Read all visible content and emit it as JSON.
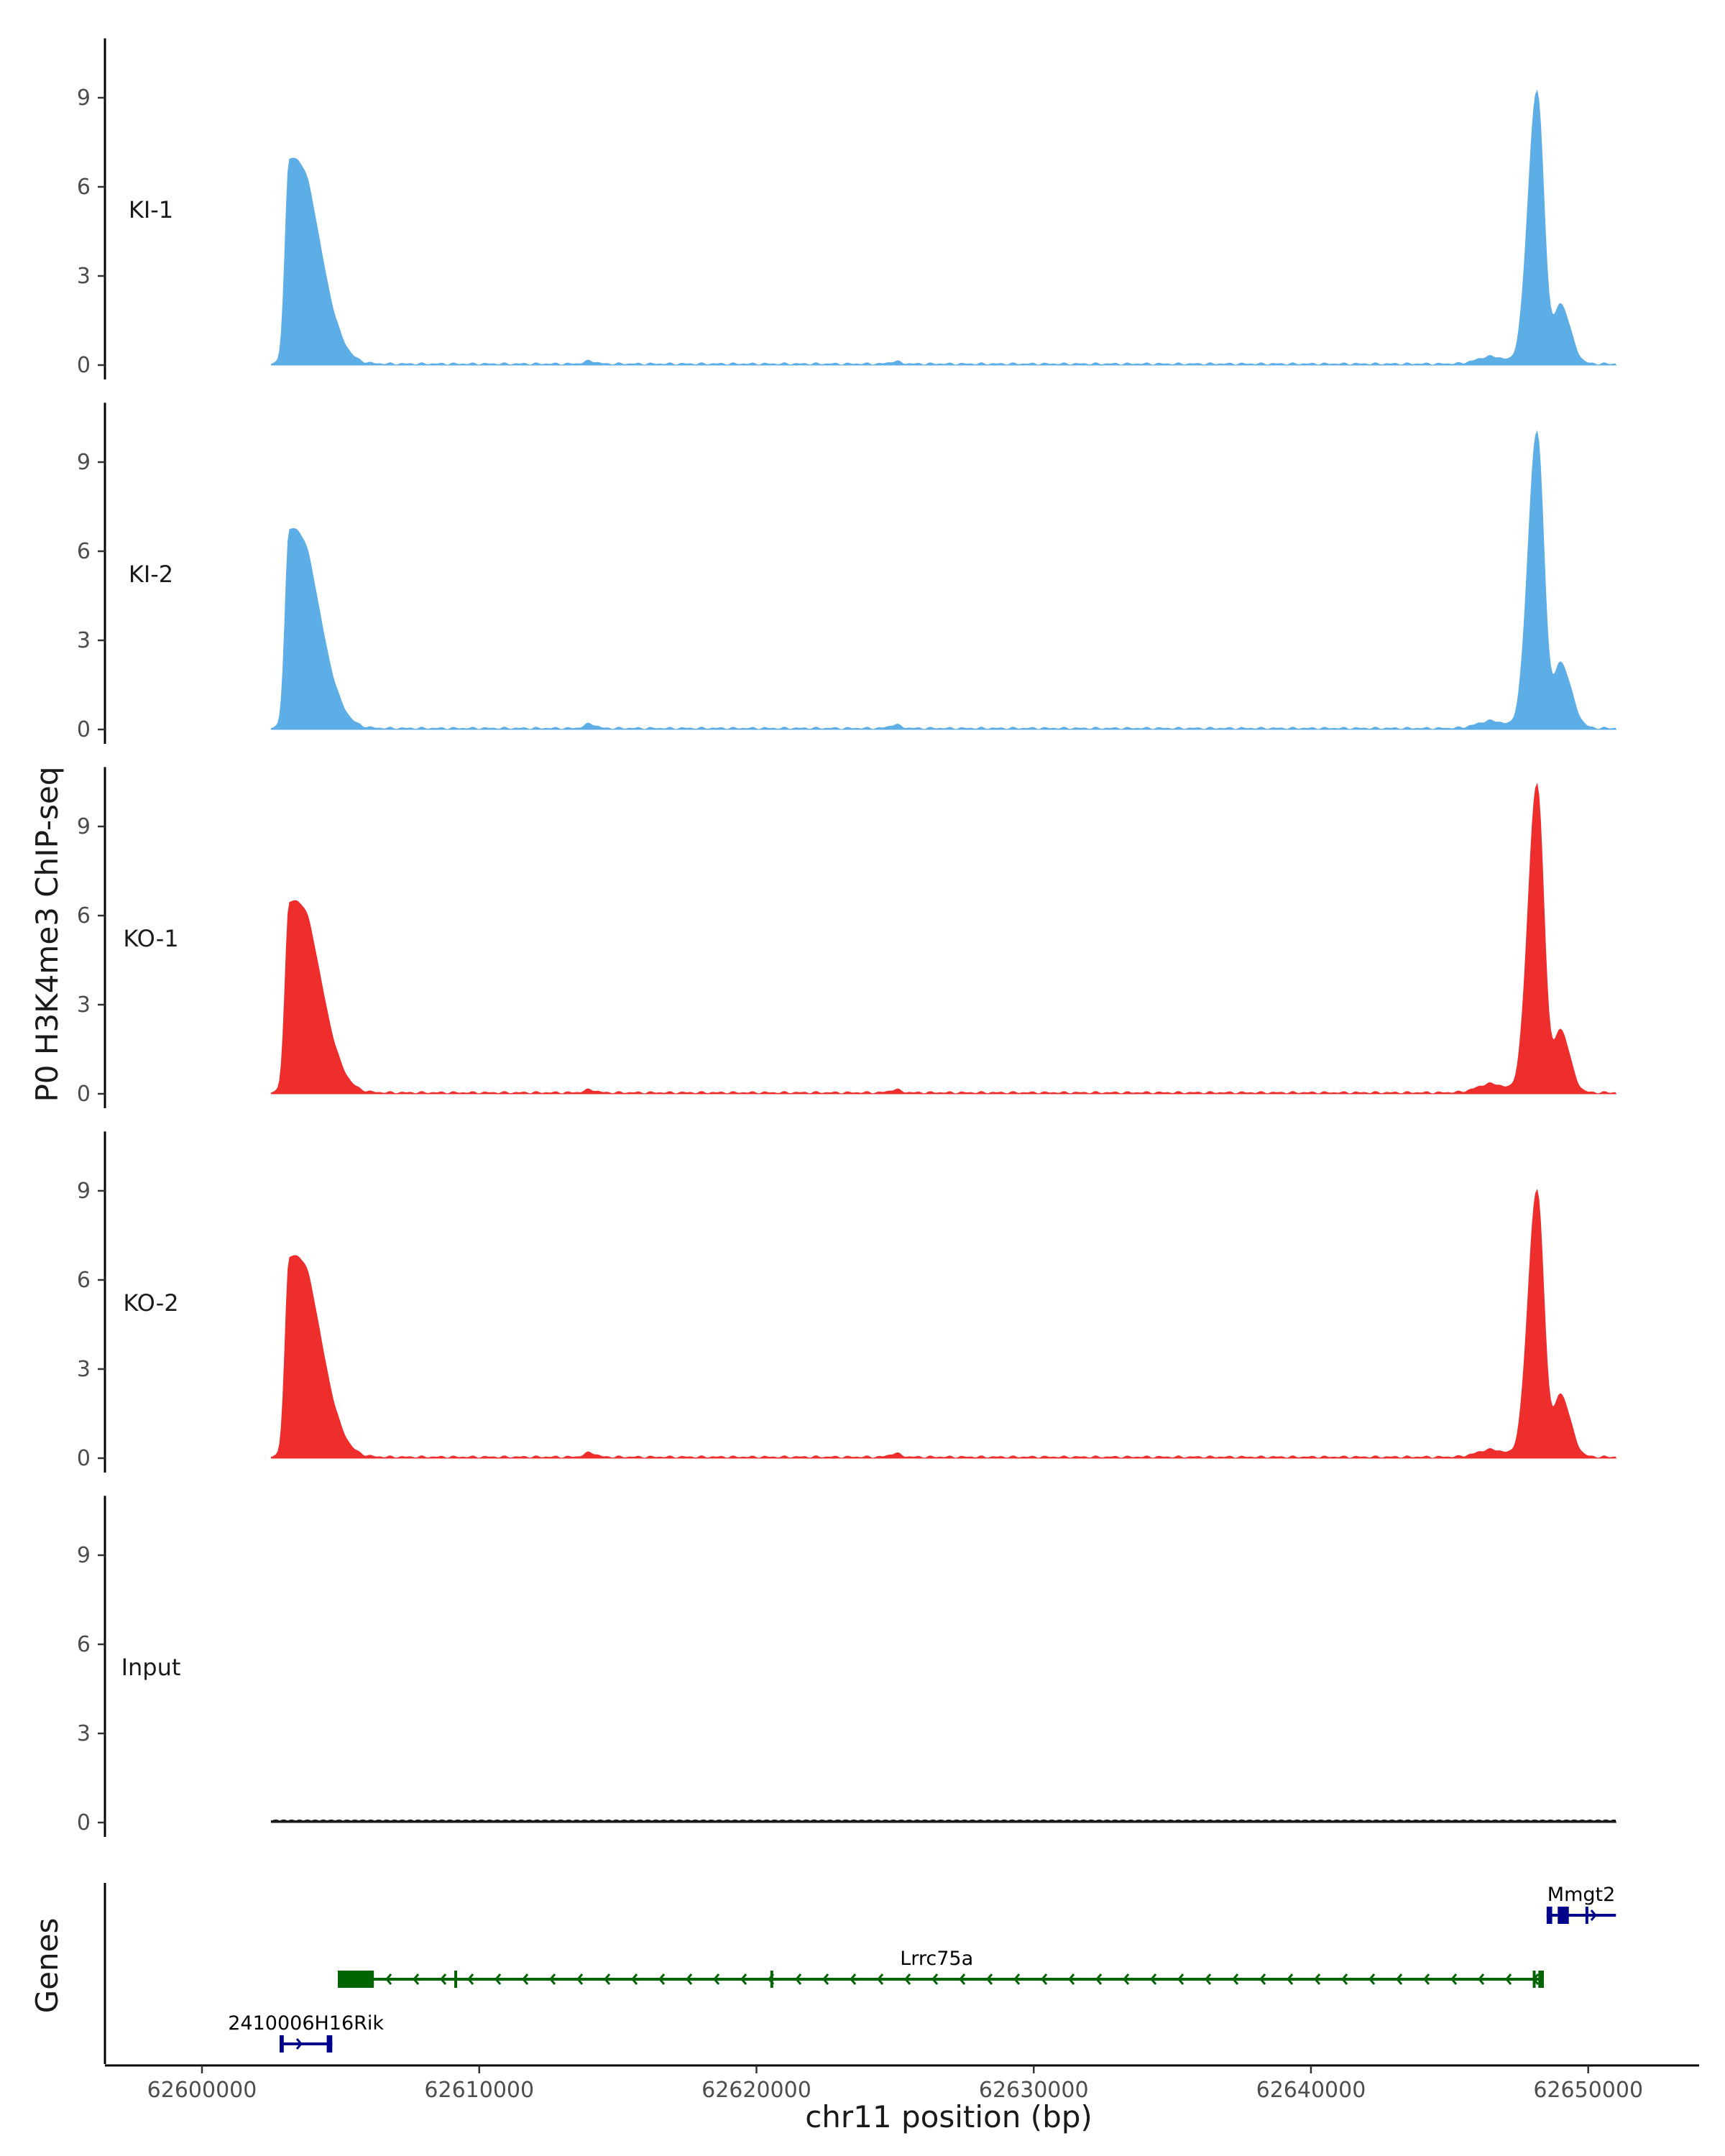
{
  "chart_data": {
    "type": "area",
    "title": "",
    "ylabel": "P0 H3K4me3 ChIP-seq",
    "xlabel": "chr11 position (bp)",
    "ylim": [
      0,
      11
    ],
    "yticks": [
      0,
      3,
      6,
      9
    ],
    "xlim": [
      62596500,
      62654000
    ],
    "xticks": [
      62600000,
      62610000,
      62620000,
      62630000,
      62640000,
      62650000
    ],
    "data_range": [
      62602500,
      62651000
    ],
    "grid": false,
    "legend": "none",
    "tracks": [
      {
        "name": "KI-1",
        "color": "#5dade6",
        "peaks": [
          {
            "center": 62603150,
            "height": 6.7,
            "width_left": 150,
            "width_right": 800
          },
          {
            "center": 62604000,
            "height": 1.6,
            "width_left": 400,
            "width_right": 700
          },
          {
            "center": 62614000,
            "height": 0.1,
            "width_left": 200,
            "width_right": 200
          },
          {
            "center": 62625000,
            "height": 0.08,
            "width_left": 200,
            "width_right": 200
          },
          {
            "center": 62646500,
            "height": 0.25,
            "width_left": 500,
            "width_right": 500
          },
          {
            "center": 62648150,
            "height": 9.2,
            "width_left": 320,
            "width_right": 250
          },
          {
            "center": 62649000,
            "height": 2.0,
            "width_left": 230,
            "width_right": 350
          }
        ]
      },
      {
        "name": "KI-2",
        "color": "#5dade6",
        "peaks": [
          {
            "center": 62603150,
            "height": 6.5,
            "width_left": 150,
            "width_right": 780
          },
          {
            "center": 62604000,
            "height": 1.6,
            "width_left": 400,
            "width_right": 700
          },
          {
            "center": 62614000,
            "height": 0.15,
            "width_left": 200,
            "width_right": 200
          },
          {
            "center": 62625000,
            "height": 0.12,
            "width_left": 200,
            "width_right": 200
          },
          {
            "center": 62646500,
            "height": 0.25,
            "width_left": 500,
            "width_right": 500
          },
          {
            "center": 62648150,
            "height": 10.0,
            "width_left": 320,
            "width_right": 250
          },
          {
            "center": 62649000,
            "height": 2.2,
            "width_left": 230,
            "width_right": 380
          }
        ]
      },
      {
        "name": "KO-1",
        "color": "#ee2d2d",
        "peaks": [
          {
            "center": 62603150,
            "height": 6.2,
            "width_left": 150,
            "width_right": 800
          },
          {
            "center": 62604000,
            "height": 1.7,
            "width_left": 400,
            "width_right": 700
          },
          {
            "center": 62614000,
            "height": 0.1,
            "width_left": 200,
            "width_right": 200
          },
          {
            "center": 62625000,
            "height": 0.1,
            "width_left": 200,
            "width_right": 200
          },
          {
            "center": 62646500,
            "height": 0.3,
            "width_left": 500,
            "width_right": 500
          },
          {
            "center": 62648150,
            "height": 10.4,
            "width_left": 320,
            "width_right": 250
          },
          {
            "center": 62649000,
            "height": 2.1,
            "width_left": 230,
            "width_right": 330
          }
        ]
      },
      {
        "name": "KO-2",
        "color": "#ee2d2d",
        "peaks": [
          {
            "center": 62603150,
            "height": 6.5,
            "width_left": 150,
            "width_right": 800
          },
          {
            "center": 62604000,
            "height": 1.8,
            "width_left": 400,
            "width_right": 700
          },
          {
            "center": 62614000,
            "height": 0.15,
            "width_left": 200,
            "width_right": 200
          },
          {
            "center": 62625000,
            "height": 0.12,
            "width_left": 200,
            "width_right": 200
          },
          {
            "center": 62646500,
            "height": 0.25,
            "width_left": 500,
            "width_right": 500
          },
          {
            "center": 62648150,
            "height": 9.0,
            "width_left": 320,
            "width_right": 250
          },
          {
            "center": 62649000,
            "height": 2.1,
            "width_left": 230,
            "width_right": 350
          }
        ]
      },
      {
        "name": "Input",
        "color": "#1a1a1a",
        "peaks": []
      }
    ],
    "genes_panel": {
      "label": "Genes",
      "genes": [
        {
          "name": "Mmgt2",
          "start": 62648500,
          "end": 62651000,
          "strand": "+",
          "color": "#00008b",
          "row": 0,
          "exons": [
            [
              62648500,
              62648700
            ],
            [
              62648900,
              62649300
            ],
            [
              62649900,
              62650000
            ]
          ]
        },
        {
          "name": "Lrrc75a",
          "start": 62604900,
          "end": 62648400,
          "strand": "-",
          "color": "#006400",
          "row": 1,
          "exons": [
            [
              62604900,
              62606200
            ],
            [
              62609100,
              62609200
            ],
            [
              62620500,
              62620600
            ],
            [
              62648000,
              62648100
            ],
            [
              62648200,
              62648400
            ]
          ]
        },
        {
          "name": "2410006H16Rik",
          "start": 62602800,
          "end": 62604700,
          "strand": "+",
          "color": "#00008b",
          "row": 2,
          "exons": [
            [
              62602800,
              62602950
            ],
            [
              62604500,
              62604700
            ]
          ]
        }
      ]
    }
  }
}
